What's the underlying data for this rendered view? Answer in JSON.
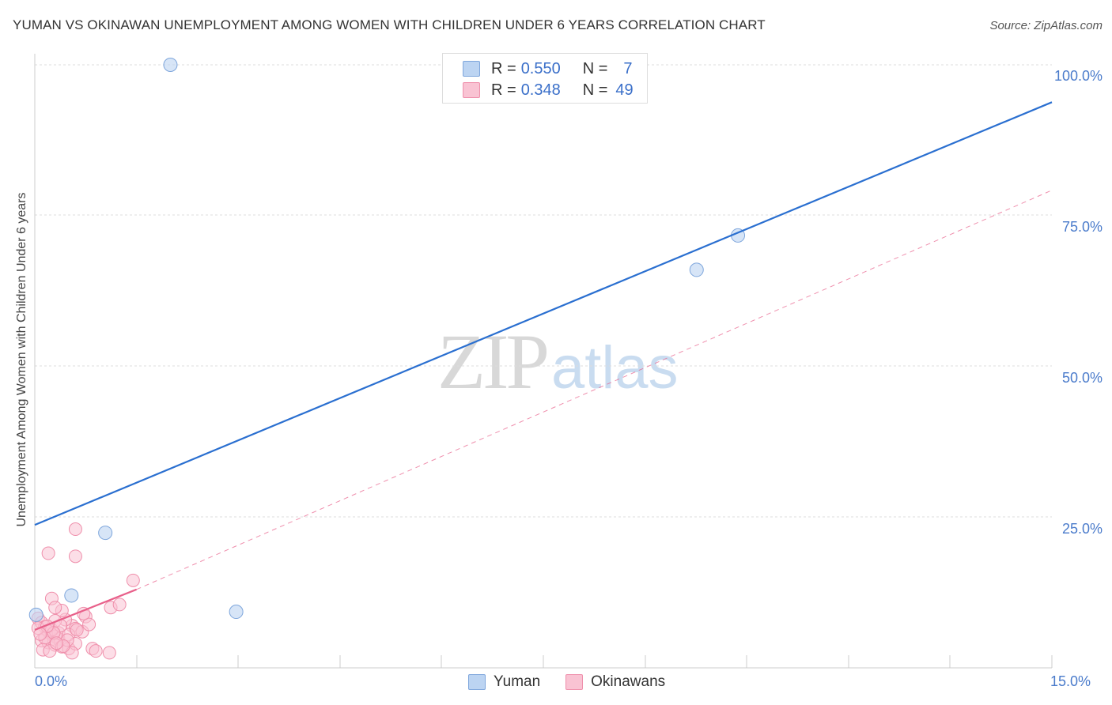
{
  "header": {
    "title": "YUMAN VS OKINAWAN UNEMPLOYMENT AMONG WOMEN WITH CHILDREN UNDER 6 YEARS CORRELATION CHART",
    "source": "Source: ZipAtlas.com"
  },
  "watermark": {
    "zip": "ZIP",
    "atlas": "atlas"
  },
  "legend_top": {
    "rows": [
      {
        "r_label": "R =",
        "r_value": "0.550",
        "n_label": "N =",
        "n_value": "7",
        "color": "#a8c8f0"
      },
      {
        "r_label": "R =",
        "r_value": "0.348",
        "n_label": "N =",
        "n_value": "49",
        "color": "#f8b8cc"
      }
    ]
  },
  "legend_bottom": {
    "items": [
      {
        "label": "Yuman",
        "color": "#a8c8f0"
      },
      {
        "label": "Okinawans",
        "color": "#f8b8cc"
      }
    ]
  },
  "axes": {
    "y_label": "Unemployment Among Women with Children Under 6 years",
    "y_ticks": [
      "100.0%",
      "75.0%",
      "50.0%",
      "25.0%"
    ],
    "x_ticks": [
      "0.0%",
      "15.0%"
    ]
  },
  "colors": {
    "yuman_fill": "#bcd4f2",
    "yuman_stroke": "#7ea6dc",
    "yuman_line": "#2a6fd0",
    "okinawan_fill": "#f9c3d3",
    "okinawan_stroke": "#ef8fab",
    "okinawan_line": "#e8608a",
    "tick_text": "#4a7bcb"
  },
  "chart_data": {
    "type": "scatter",
    "title": "YUMAN VS OKINAWAN UNEMPLOYMENT AMONG WOMEN WITH CHILDREN UNDER 6 YEARS CORRELATION CHART",
    "xlabel": "",
    "ylabel": "Unemployment Among Women with Children Under 6 years",
    "xlim": [
      0,
      15
    ],
    "ylim": [
      0,
      100
    ],
    "x_tick_labels": [
      "0.0%",
      "15.0%"
    ],
    "y_tick_labels": [
      "25.0%",
      "50.0%",
      "75.0%",
      "100.0%"
    ],
    "grid": "horizontal dashed at 25/50/75/100",
    "legend_position": "top-center and bottom",
    "series": [
      {
        "name": "Yuman",
        "R": 0.55,
        "N": 7,
        "points": [
          [
            2.0,
            100.0
          ],
          [
            1.04,
            22.4
          ],
          [
            0.54,
            12.0
          ],
          [
            2.97,
            9.3
          ],
          [
            0.02,
            8.8
          ],
          [
            9.76,
            66.0
          ],
          [
            10.37,
            71.7
          ]
        ],
        "trendline": {
          "x": [
            0,
            15
          ],
          "y": [
            23.7,
            93.8
          ],
          "style": "solid"
        }
      },
      {
        "name": "Okinawans",
        "R": 0.348,
        "N": 49,
        "points": [
          [
            0.05,
            8.2
          ],
          [
            0.1,
            7.5
          ],
          [
            0.15,
            6.8
          ],
          [
            0.2,
            6.0
          ],
          [
            0.25,
            5.5
          ],
          [
            0.3,
            5.2
          ],
          [
            0.35,
            4.8
          ],
          [
            0.1,
            4.5
          ],
          [
            0.2,
            4.2
          ],
          [
            0.3,
            3.8
          ],
          [
            0.4,
            3.5
          ],
          [
            0.5,
            3.2
          ],
          [
            0.55,
            7.0
          ],
          [
            0.6,
            6.5
          ],
          [
            0.45,
            8.0
          ],
          [
            0.4,
            9.5
          ],
          [
            0.35,
            5.8
          ],
          [
            0.25,
            6.3
          ],
          [
            0.15,
            5.0
          ],
          [
            0.05,
            6.6
          ],
          [
            0.12,
            3.0
          ],
          [
            0.22,
            2.8
          ],
          [
            0.3,
            7.8
          ],
          [
            0.5,
            5.5
          ],
          [
            0.6,
            4.0
          ],
          [
            0.7,
            6.0
          ],
          [
            0.75,
            8.5
          ],
          [
            0.8,
            7.2
          ],
          [
            0.85,
            3.2
          ],
          [
            0.55,
            2.5
          ],
          [
            0.48,
            4.6
          ],
          [
            0.38,
            7.0
          ],
          [
            0.28,
            5.8
          ],
          [
            0.18,
            6.9
          ],
          [
            0.08,
            5.6
          ],
          [
            0.2,
            19.0
          ],
          [
            0.6,
            18.5
          ],
          [
            0.6,
            23.0
          ],
          [
            0.25,
            11.5
          ],
          [
            0.3,
            10.0
          ],
          [
            1.1,
            2.5
          ],
          [
            0.9,
            2.8
          ],
          [
            1.12,
            10.0
          ],
          [
            1.25,
            10.5
          ],
          [
            1.45,
            14.5
          ],
          [
            0.72,
            9.0
          ],
          [
            0.62,
            6.3
          ],
          [
            0.42,
            3.6
          ],
          [
            0.32,
            4.1
          ]
        ],
        "trendline": {
          "x": [
            0,
            1.5
          ],
          "y": [
            6.3,
            13.0
          ],
          "style": "solid",
          "extended": {
            "x": [
              1.5,
              15
            ],
            "y": [
              13.0,
              79.2
            ],
            "style": "dashed"
          }
        }
      }
    ]
  }
}
